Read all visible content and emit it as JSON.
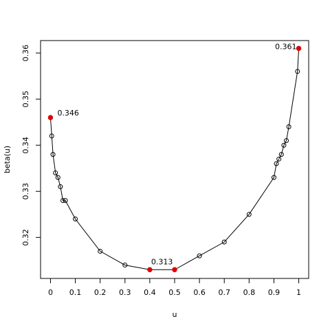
{
  "chart_data": {
    "type": "line",
    "title": "",
    "xlabel": "u",
    "ylabel": "beta(u)",
    "xlim": [
      -0.04,
      1.04
    ],
    "ylim": [
      0.3111,
      0.3627
    ],
    "grid": false,
    "x_ticks": [
      0,
      0.1,
      0.2,
      0.3,
      0.4,
      0.5,
      0.6,
      0.7,
      0.8,
      0.9,
      1
    ],
    "x_tick_labels": [
      "0",
      "0.1",
      "0.2",
      "0.3",
      "0.4",
      "0.5",
      "0.6",
      "0.7",
      "0.8",
      "0.9",
      "1"
    ],
    "y_ticks": [
      0.32,
      0.33,
      0.34,
      0.35,
      0.36
    ],
    "y_tick_labels": [
      "0.32",
      "0.33",
      "0.34",
      "0.35",
      "0.36"
    ],
    "series": [
      {
        "x": [
          0,
          0.005,
          0.01,
          0.02,
          0.03,
          0.04,
          0.05,
          0.06,
          0.1,
          0.2,
          0.3,
          0.4,
          0.5,
          0.6,
          0.7,
          0.8,
          0.9,
          0.91,
          0.92,
          0.93,
          0.94,
          0.95,
          0.96,
          0.995,
          1
        ],
        "y": [
          0.346,
          0.342,
          0.338,
          0.334,
          0.333,
          0.331,
          0.328,
          0.328,
          0.324,
          0.317,
          0.314,
          0.313,
          0.313,
          0.316,
          0.319,
          0.325,
          0.333,
          0.336,
          0.337,
          0.338,
          0.34,
          0.341,
          0.344,
          0.356,
          0.361
        ]
      }
    ],
    "highlighted_points": [
      {
        "x": 0,
        "y": 0.346,
        "label": "0.346"
      },
      {
        "x": 0.4,
        "y": 0.313,
        "label": "0.313"
      },
      {
        "x": 0.5,
        "y": 0.313,
        "label": ""
      },
      {
        "x": 1,
        "y": 0.361,
        "label": "0.361"
      }
    ],
    "colors": {
      "line": "#000000",
      "marker": "#000000",
      "highlight": "#e00000"
    }
  }
}
